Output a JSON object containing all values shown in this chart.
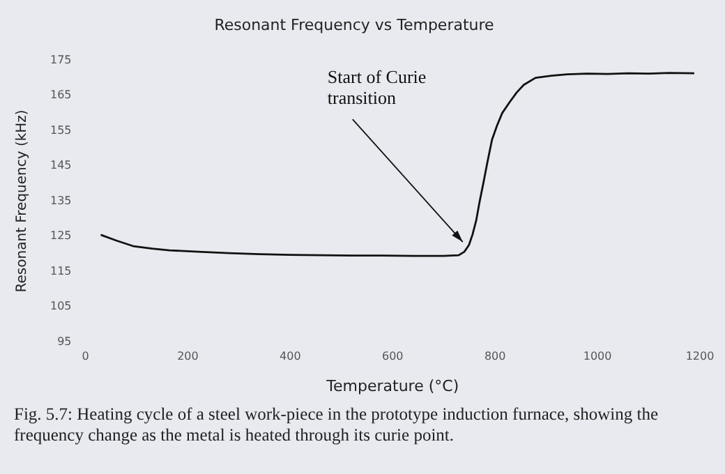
{
  "chart_data": {
    "type": "line",
    "title": "Resonant Frequency vs Temperature",
    "xlabel": "Temperature (°C)",
    "ylabel": "Resonant Frequency (kHz)",
    "series": [
      {
        "color": "#111111",
        "x": [
          30,
          60,
          93,
          130,
          164,
          220,
          280,
          340,
          400,
          460,
          520,
          580,
          640,
          700,
          729,
          740,
          749,
          756,
          763,
          770,
          777,
          785,
          794,
          804,
          814,
          828,
          842,
          856,
          879,
          910,
          941,
          980,
          1020,
          1060,
          1100,
          1140,
          1189
        ],
        "values": [
          125.4,
          123.8,
          122.2,
          121.5,
          121,
          120.6,
          120.2,
          119.9,
          119.7,
          119.6,
          119.5,
          119.5,
          119.4,
          119.4,
          119.6,
          120.6,
          122.5,
          125.5,
          129.4,
          135,
          140,
          146,
          152.4,
          156.5,
          160,
          163,
          165.8,
          168,
          170,
          170.6,
          171,
          171.2,
          171.1,
          171.3,
          171.2,
          171.4,
          171.3
        ]
      }
    ],
    "xlim": [
      0,
      1200
    ],
    "xticks": [
      0,
      200,
      400,
      600,
      800,
      1000,
      1200
    ],
    "ylim": [
      95,
      175
    ],
    "yticks": [
      95,
      105,
      115,
      125,
      135,
      145,
      155,
      165,
      175
    ],
    "grid": false,
    "legend": false,
    "marker": "none",
    "line_style": "solid",
    "annotations": [
      {
        "text": "Start of Curie transition",
        "x": 745,
        "y": 121
      },
      "Fig. 5.7: Heating cycle of a steel work-piece in the prototype induction furnace, showing the frequency change as the metal is heated through its curie point."
    ]
  }
}
